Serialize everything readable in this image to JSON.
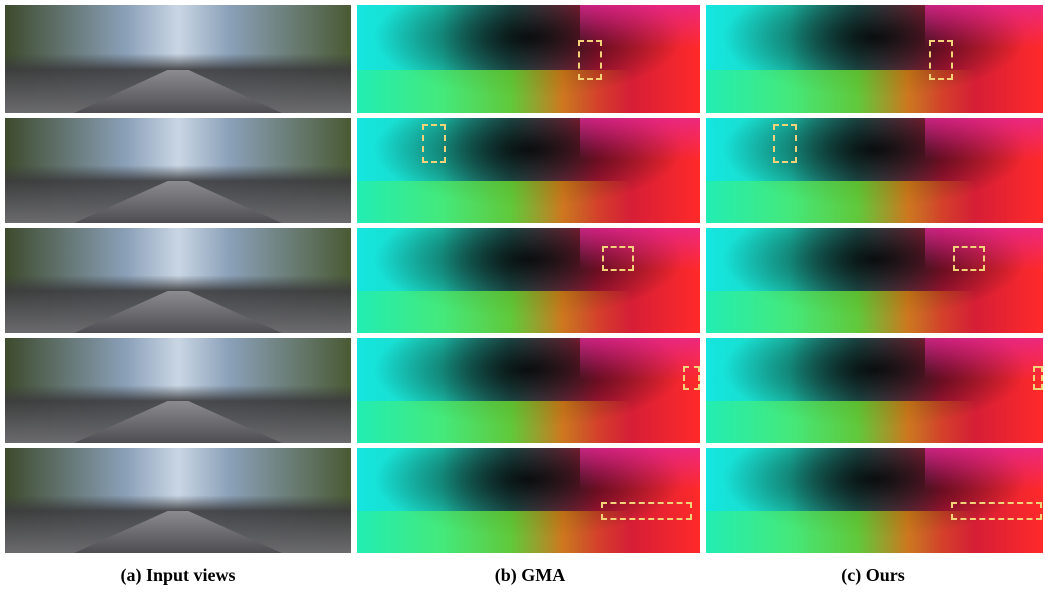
{
  "figure": {
    "columns": [
      {
        "caption": "(a) Input views"
      },
      {
        "caption": "(b) GMA"
      },
      {
        "caption": "(c) Ours"
      }
    ]
  }
}
